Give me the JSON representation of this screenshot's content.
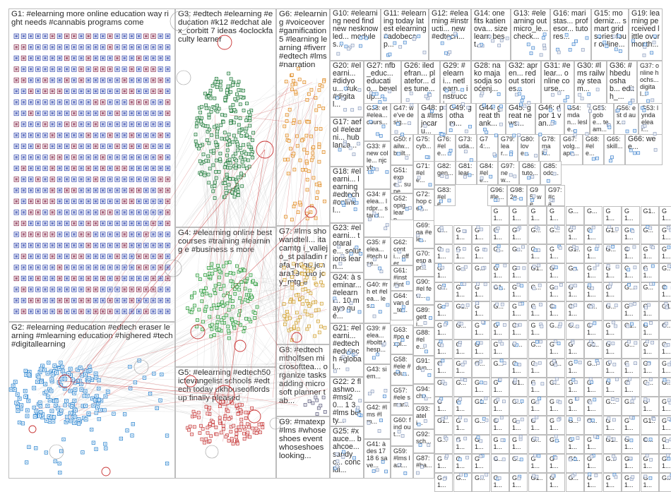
{
  "title": "",
  "colors": {
    "border": "#bdbdbd",
    "edge_gray": "#c8c8c8",
    "edge_red": "#c83232",
    "G1": "#3a4fb0",
    "G2": "#2e86d0",
    "G3": "#1f7a3a",
    "G4": "#2a9a3a",
    "G5": "#c84040",
    "G6": "#e08a20",
    "G7": "#d0a030",
    "G8": "#606080",
    "G9": "#5070c0",
    "G10": "#4a8ad0",
    "misc": "#8fa0c0"
  },
  "groups": [
    {
      "id": "G1",
      "label": "G1: #elearning more online education way right needs #cannabis programs come"
    },
    {
      "id": "G2",
      "label": "G2: #elearning #education #edtech eraser learning #mlearning education #highered #tech #digitallearning"
    },
    {
      "id": "G3",
      "label": "G3: #edtech #elearning #education #k12 #edchat alex_corbitt 7 ideas 4oclockfaculty learner"
    },
    {
      "id": "G4",
      "label": "G4: #elearning online best courses #training #learning e #business s more"
    },
    {
      "id": "G5",
      "label": "G5: #elearning #edtech50 ictevangelist schools #edtech today ukhouseoflords up finally pleased"
    },
    {
      "id": "G6",
      "label": "G6: #elearning #voiceover #gamification 5 #learning learning #fiverr #edtech #lms #narration"
    },
    {
      "id": "G7",
      "label": "G7: #lms showandtell... itacamtg i_vallejo_st paladin rafa_migu jenara19 voto joy_mtg e"
    },
    {
      "id": "G8",
      "label": "G8: #edtech mtholfsen microsoftteа... organize tasks adding microsoft planner tab..."
    },
    {
      "id": "G9",
      "label": "G9: #matexp #lms #whoseshoes event whoseshoes looking..."
    },
    {
      "id": "G10",
      "label": "G10: #elearning need find new nesknowled... modules..."
    },
    {
      "id": "G11",
      "label": "G11: #elearning today latest elearning #adobecap..."
    },
    {
      "id": "G12",
      "label": "G12: #elearning #instructi... new #edtech..."
    },
    {
      "id": "G14",
      "label": "G14: one fits katienova... size learn best..."
    },
    {
      "id": "G13",
      "label": "G13: #elearning out micro_le... check..."
    },
    {
      "id": "G16",
      "label": "G16: maristas... profesor... tutores..."
    },
    {
      "id": "G15",
      "label": "G15: moderniz... smart grid series four online..."
    },
    {
      "id": "G19",
      "label": "G19: learning perceived little over month..."
    },
    {
      "id": "G20",
      "label": "G20: #elearni... #didyou... #uk #digital..."
    },
    {
      "id": "G27",
      "label": "G27: nfb_educ... educatio... bevel up..."
    },
    {
      "id": "G26",
      "label": "G26: iledefran... platefor... des tune..."
    },
    {
      "id": "G29",
      "label": "G29: #elearni... netlearn... instrucci..."
    },
    {
      "id": "G28",
      "label": "G28: na ko maja sodja sooćenj..."
    },
    {
      "id": "G32",
      "label": "G32: apren... red out stories..."
    },
    {
      "id": "G31",
      "label": "G31: #elear... online course..."
    },
    {
      "id": "G30",
      "label": "G30: #lms railway steam..."
    },
    {
      "id": "G36",
      "label": "G36: #hbedu oshab... edith_..."
    },
    {
      "id": "G37",
      "label": "G37: online hochs... digital..."
    },
    {
      "id": "G17",
      "label": "G17: aefol #elearni... hub lanza..."
    },
    {
      "id": "G18",
      "label": "G18: #elearni... learning #edtech #onlinel..."
    },
    {
      "id": "G23",
      "label": "G23: #elearni... totarale... solutions learn..."
    },
    {
      "id": "G24",
      "label": "G24: à seminar... #elearni... 10 mayo qué..."
    },
    {
      "id": "G21",
      "label": "G21: #elearni... #edtech #edutech #global..."
    },
    {
      "id": "G22",
      "label": "G22: 2 flashwo... #msi20... 1 3 #lms betty..."
    },
    {
      "id": "G25",
      "label": "G25: #xauce... bahcoe... sandyc... conclui..."
    },
    {
      "id": "G38",
      "label": "G38: et #elea... cours..."
    },
    {
      "id": "G47",
      "label": "G47: we've desig..."
    },
    {
      "id": "G48",
      "label": "G48: pa #lms jocaru..."
    },
    {
      "id": "G49",
      "label": "G49: gotham..."
    },
    {
      "id": "G44",
      "label": "G44: great thank..."
    },
    {
      "id": "G45",
      "label": "G45: great news..."
    },
    {
      "id": "G46",
      "label": "G46: dpor 1 van..."
    },
    {
      "id": "G54",
      "label": "G54: mdan... lesle..."
    },
    {
      "id": "G55",
      "label": "G55: gobe... team..."
    },
    {
      "id": "G56",
      "label": "G56: est d aux..."
    },
    {
      "id": "G53",
      "label": "G53: lynda elear..."
    },
    {
      "id": "G33",
      "label": "G33: #new colle... njcyb..."
    },
    {
      "id": "G34",
      "label": "G34: #elea... lrdpr... stand..."
    },
    {
      "id": "G35",
      "label": "G35: #elea... #tech use..."
    },
    {
      "id": "G40",
      "label": "G40: #rh et #elea... les..."
    },
    {
      "id": "G39",
      "label": "G39: #elea... #boltt thesp..."
    },
    {
      "id": "G43",
      "label": "G43: siem..."
    },
    {
      "id": "G42",
      "label": "G42: #lms #lm..."
    },
    {
      "id": "G41",
      "label": "G41: à des 17 18 6 save..."
    },
    {
      "id": "G50",
      "label": "G50: railw... built..."
    },
    {
      "id": "G75",
      "label": "G75: cyb..."
    },
    {
      "id": "G76",
      "label": "G76: #ele..."
    },
    {
      "id": "G73",
      "label": "G73: uda..."
    },
    {
      "id": "G74",
      "label": "G74:..."
    },
    {
      "id": "G79",
      "label": "G79: lear..."
    },
    {
      "id": "G80",
      "label": "G80: love..."
    },
    {
      "id": "G78",
      "label": "G78: mak..."
    },
    {
      "id": "G67",
      "label": "G67: volg... ape..."
    },
    {
      "id": "G68",
      "label": "G68: #ele..."
    },
    {
      "id": "G65",
      "label": "G65: skill..."
    },
    {
      "id": "G66",
      "label": "G66: wee..."
    },
    {
      "id": "G51",
      "label": "G51: expe... supe..."
    },
    {
      "id": "G52",
      "label": "G52: opig... learn..."
    },
    {
      "id": "G72",
      "label": "G72: hop cefi..."
    },
    {
      "id": "G69",
      "label": "G69: ga #ele..."
    },
    {
      "id": "G62",
      "label": "G62: conti... offer..."
    },
    {
      "id": "G70",
      "label": "G70: esp apr..."
    },
    {
      "id": "G61",
      "label": "G61: #inst #inte..."
    },
    {
      "id": "G90",
      "label": "G90: #el few..."
    },
    {
      "id": "G64",
      "label": "G64: van d_te..."
    },
    {
      "id": "G89",
      "label": "G89: getti..."
    },
    {
      "id": "G63",
      "label": "G63: #po expl..."
    },
    {
      "id": "G88",
      "label": "G88: #ele..."
    },
    {
      "id": "G58",
      "label": "G58: #ele #edu..."
    },
    {
      "id": "G91",
      "label": "G91: dun..."
    },
    {
      "id": "G94",
      "label": "G94: che..."
    },
    {
      "id": "G57",
      "label": "G57: #ele smar..."
    },
    {
      "id": "G93",
      "label": "G93: ateli..."
    },
    {
      "id": "G60",
      "label": "G60: find out..."
    },
    {
      "id": "G92",
      "label": "G92: sch..."
    },
    {
      "id": "G59",
      "label": "G59: #lms last..."
    },
    {
      "id": "G87",
      "label": "G87: #ba..."
    },
    {
      "id": "G82",
      "label": "G82: gen..."
    },
    {
      "id": "G81",
      "label": "G81: lear..."
    },
    {
      "id": "G84",
      "label": "G84: #ele..."
    },
    {
      "id": "G97",
      "label": "G97: new..."
    },
    {
      "id": "G86",
      "label": "G86: tuto..."
    },
    {
      "id": "G85",
      "label": "G85: odc..."
    },
    {
      "id": "G96",
      "label": "G96: #le..."
    },
    {
      "id": "G98",
      "label": "G98: 2e..."
    },
    {
      "id": "G95",
      "label": "G95: we..."
    },
    {
      "id": "G97b",
      "label": "G97: #ca..."
    },
    {
      "id": "G71",
      "label": "G71: #ele..."
    },
    {
      "id": "G83",
      "label": "G83: #ele..."
    }
  ],
  "small_labels": [
    "G1...",
    "G1...",
    "G1...",
    "G1...",
    "G...",
    "G...",
    "G1...",
    "G1...",
    "G1..",
    "G1...",
    "G..."
  ]
}
